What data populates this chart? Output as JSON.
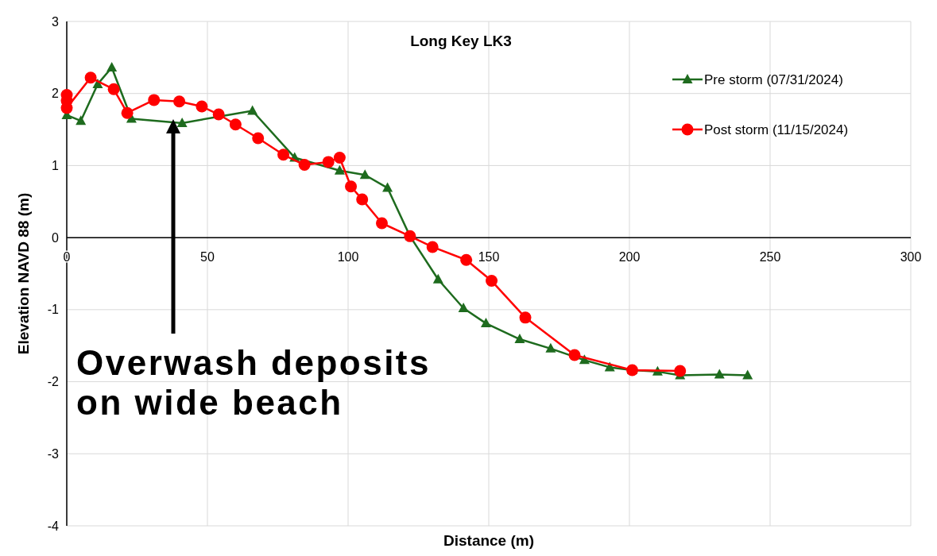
{
  "chart_data": {
    "type": "line",
    "title": "Long Key LK3",
    "xlabel": "Distance (m)",
    "ylabel": "Elevation NAVD 88 (m)",
    "xlim": [
      0,
      300
    ],
    "xticks": [
      0,
      50,
      100,
      150,
      200,
      250,
      300
    ],
    "ylim": [
      -4,
      3
    ],
    "yticks": [
      -4,
      -3,
      -2,
      -1,
      0,
      1,
      2,
      3
    ],
    "grid": true,
    "legend": "top right",
    "annotations": [
      "Overwash deposits on wide beach"
    ],
    "series": [
      {
        "name": "Pre storm (07/31/2024)",
        "color": "#1e6b1e",
        "marker": "triangle",
        "x": [
          0,
          5,
          11,
          16,
          23,
          41,
          66,
          81,
          97,
          106,
          114,
          122,
          132,
          141,
          149,
          161,
          172,
          184,
          193,
          201,
          210,
          218,
          232,
          242
        ],
        "values": [
          1.7,
          1.62,
          2.13,
          2.36,
          1.65,
          1.59,
          1.76,
          1.11,
          0.93,
          0.87,
          0.69,
          0.02,
          -0.58,
          -0.98,
          -1.19,
          -1.41,
          -1.54,
          -1.7,
          -1.8,
          -1.84,
          -1.86,
          -1.91,
          -1.9,
          -1.91
        ]
      },
      {
        "name": "Post storm (11/15/2024)",
        "color": "#ff0000",
        "marker": "circle",
        "x": [
          0,
          0,
          0,
          8.5,
          16.7,
          21.5,
          31,
          40,
          48,
          54,
          60,
          68,
          77,
          84.5,
          93,
          97,
          101,
          105,
          112,
          122,
          130,
          142,
          151,
          163,
          180.5,
          201,
          218
        ],
        "values": [
          1.98,
          1.9,
          1.8,
          2.22,
          2.06,
          1.73,
          1.91,
          1.89,
          1.82,
          1.71,
          1.57,
          1.38,
          1.15,
          1.01,
          1.05,
          1.11,
          0.71,
          0.53,
          0.2,
          0.02,
          -0.13,
          -0.31,
          -0.6,
          -1.11,
          -1.63,
          -1.84,
          -1.85
        ]
      }
    ]
  }
}
